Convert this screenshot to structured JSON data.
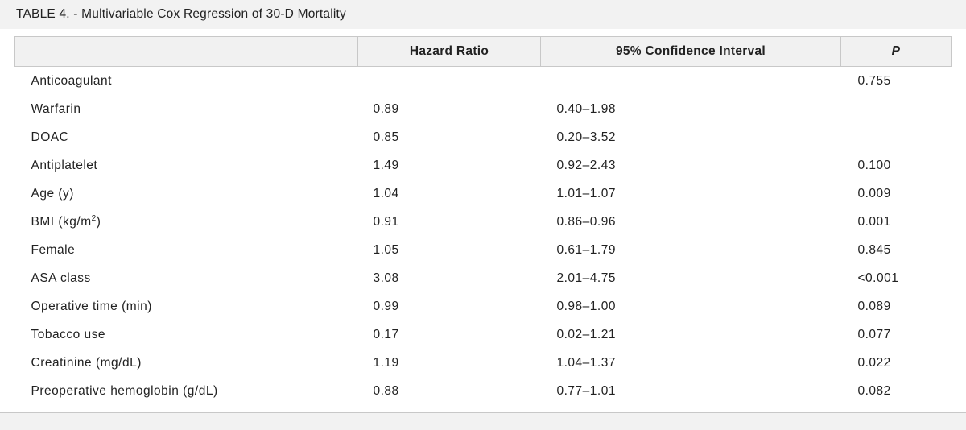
{
  "title": "TABLE 4. - Multivariable Cox Regression of 30-D Mortality",
  "columns": [
    "",
    "Hazard Ratio",
    "95% Confidence Interval",
    "P"
  ],
  "rows": [
    {
      "variable": "Anticoagulant",
      "hr": "",
      "ci": "",
      "p": "0.755"
    },
    {
      "variable": "Warfarin",
      "hr": "0.89",
      "ci": "0.40–1.98",
      "p": ""
    },
    {
      "variable": "DOAC",
      "hr": "0.85",
      "ci": "0.20–3.52",
      "p": ""
    },
    {
      "variable": "Antiplatelet",
      "hr": "1.49",
      "ci": "0.92–2.43",
      "p": "0.100"
    },
    {
      "variable": "Age (y)",
      "hr": "1.04",
      "ci": "1.01–1.07",
      "p": "0.009"
    },
    {
      "variable": "BMI (kg/m",
      "variable_sup": "2",
      "variable_suffix": ")",
      "hr": "0.91",
      "ci": "0.86–0.96",
      "p": "0.001"
    },
    {
      "variable": "Female",
      "hr": "1.05",
      "ci": "0.61–1.79",
      "p": "0.845"
    },
    {
      "variable": "ASA class",
      "hr": "3.08",
      "ci": "2.01–4.75",
      "p": "<0.001"
    },
    {
      "variable": "Operative time (min)",
      "hr": "0.99",
      "ci": "0.98–1.00",
      "p": "0.089"
    },
    {
      "variable": "Tobacco use",
      "hr": "0.17",
      "ci": "0.02–1.21",
      "p": "0.077"
    },
    {
      "variable": "Creatinine (mg/dL)",
      "hr": "1.19",
      "ci": "1.04–1.37",
      "p": "0.022"
    },
    {
      "variable": "Preoperative hemoglobin (g/dL)",
      "hr": "0.88",
      "ci": "0.77–1.01",
      "p": "0.082"
    }
  ]
}
